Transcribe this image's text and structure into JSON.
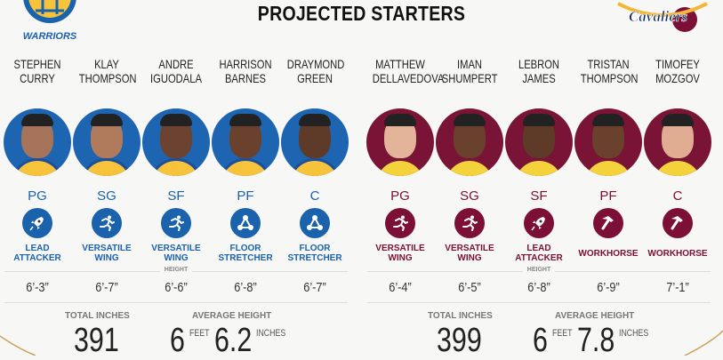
{
  "title": "PROJECTED STARTERS",
  "height_label": "HEIGHT",
  "colors": {
    "warriors": "#1b62ad",
    "cavaliers": "#7c0f35"
  },
  "teams": [
    {
      "id": "gsw",
      "logo_text": "WARRIORS",
      "players": [
        {
          "name1": "STEPHEN",
          "name2": "CURRY",
          "position": "PG",
          "role1": "LEAD",
          "role2": "ATTACKER",
          "icon": "rocket-icon",
          "height": "6’-3”",
          "skin": "#a5745a"
        },
        {
          "name1": "KLAY",
          "name2": "THOMPSON",
          "position": "SG",
          "role1": "VERSATILE",
          "role2": "WING",
          "icon": "runner-icon",
          "height": "6’-7”",
          "skin": "#b07a5c"
        },
        {
          "name1": "ANDRE",
          "name2": "IGUODALA",
          "position": "SF",
          "role1": "VERSATILE",
          "role2": "WING",
          "icon": "runner-icon",
          "height": "6’-6”",
          "skin": "#6b4330"
        },
        {
          "name1": "HARRISON",
          "name2": "BARNES",
          "position": "PF",
          "role1": "FLOOR",
          "role2": "STRETCHER",
          "icon": "network-icon",
          "height": "6’-8”",
          "skin": "#6a412c"
        },
        {
          "name1": "DRAYMOND",
          "name2": "GREEN",
          "position": "C",
          "role1": "FLOOR",
          "role2": "STRETCHER",
          "icon": "network-icon",
          "height": "6’-7”",
          "skin": "#5e3a28"
        }
      ],
      "total_label": "TOTAL INCHES",
      "total": "391",
      "avg_label": "AVERAGE HEIGHT",
      "avg_feet": "6",
      "feet_label": "FEET",
      "avg_inches": "6.2",
      "inches_label": "INCHES"
    },
    {
      "id": "cle",
      "logo_text": "CAVALIERS",
      "players": [
        {
          "name1": "MATTHEW",
          "name2": "DELLAVEDOVA",
          "position": "PG",
          "role1": "VERSATILE",
          "role2": "WING",
          "icon": "runner-icon",
          "height": "6’-4”",
          "skin": "#e3b49a"
        },
        {
          "name1": "IMAN",
          "name2": "SHUMPERT",
          "position": "SG",
          "role1": "VERSATILE",
          "role2": "WING",
          "icon": "runner-icon",
          "height": "6’-5”",
          "skin": "#6a412c"
        },
        {
          "name1": "LEBRON",
          "name2": "JAMES",
          "position": "SF",
          "role1": "LEAD",
          "role2": "ATTACKER",
          "icon": "rocket-icon",
          "height": "6’-8”",
          "skin": "#5e3a28"
        },
        {
          "name1": "TRISTAN",
          "name2": "THOMPSON",
          "position": "PF",
          "role1": "",
          "role2": "WORKHORSE",
          "icon": "hammer-icon",
          "height": "6’-9”",
          "skin": "#6a412c"
        },
        {
          "name1": "TIMOFEY",
          "name2": "MOZGOV",
          "position": "C",
          "role1": "",
          "role2": "WORKHORSE",
          "icon": "hammer-icon",
          "height": "7’-1”",
          "skin": "#e0ad92"
        }
      ],
      "total_label": "TOTAL INCHES",
      "total": "399",
      "avg_label": "AVERAGE HEIGHT",
      "avg_feet": "6",
      "feet_label": "FEET",
      "avg_inches": "7.8",
      "inches_label": "INCHES"
    }
  ]
}
